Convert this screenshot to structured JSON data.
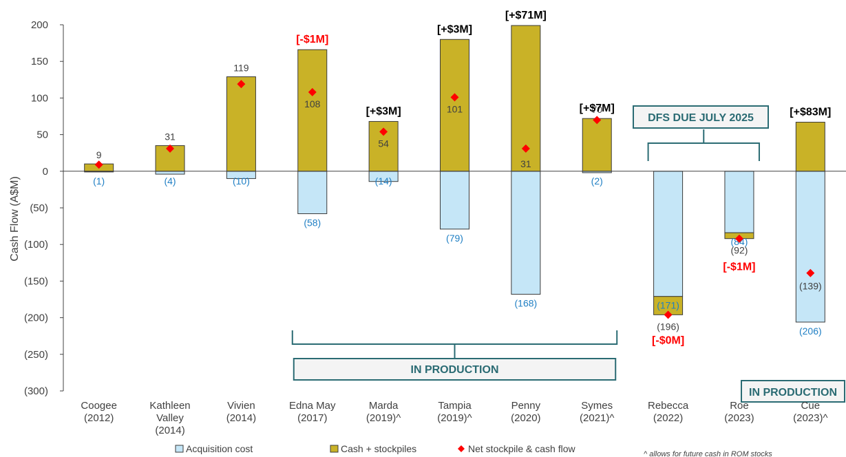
{
  "chart_data": {
    "type": "bar",
    "ylabel": "Cash Flow (A$M)",
    "ylim": [
      -300,
      200
    ],
    "yticks": [
      200,
      150,
      100,
      50,
      0,
      -50,
      -100,
      -150,
      -200,
      -250,
      -300
    ],
    "ytick_labels": [
      "200",
      "150",
      "100",
      "50",
      "0",
      "(50)",
      "(100)",
      "(150)",
      "(200)",
      "(250)",
      "(300)"
    ],
    "categories": [
      [
        "Coogee",
        "(2012)"
      ],
      [
        "Kathleen",
        "Valley",
        "(2014)"
      ],
      [
        "Vivien",
        "(2014)"
      ],
      [
        "Edna May",
        "(2017)"
      ],
      [
        "Marda",
        "(2019)^"
      ],
      [
        "Tampia",
        "(2019)^"
      ],
      [
        "Penny",
        "(2020)"
      ],
      [
        "Symes",
        "(2021)^"
      ],
      [
        "Rebecca",
        "(2022)"
      ],
      [
        "Roe",
        "(2023)"
      ],
      [
        "Cue",
        "(2023)^"
      ]
    ],
    "series": [
      {
        "name": "Acquisition cost",
        "color": "#c5e6f7",
        "values": [
          -1,
          -4,
          -10,
          -58,
          -14,
          -79,
          -168,
          -2,
          -171,
          -84,
          -206
        ],
        "labels": [
          "(1)",
          "(4)",
          "(10)",
          "(58)",
          "(14)",
          "(79)",
          "(168)",
          "(2)",
          "(171)",
          "(84)",
          "(206)"
        ]
      },
      {
        "name": "Cash + stockpiles",
        "color": "#c9b227",
        "values": [
          10,
          35,
          129,
          166,
          68,
          180,
          199,
          72,
          -25,
          -8,
          67
        ]
      },
      {
        "name": "Net stockpile & cash flow",
        "color": "#ff0000",
        "values": [
          9,
          31,
          119,
          108,
          54,
          101,
          31,
          70,
          -196,
          -92,
          -139
        ],
        "labels": [
          "9",
          "31",
          "119",
          "108",
          "54",
          "101",
          "31",
          "70",
          "(196)",
          "(92)",
          "(139)"
        ]
      }
    ],
    "annotations": [
      {
        "category": 3,
        "text": "[-$1M]",
        "color": "#ff0000"
      },
      {
        "category": 4,
        "text": "[+$3M]",
        "color": "#000000"
      },
      {
        "category": 5,
        "text": "[+$3M]",
        "color": "#000000"
      },
      {
        "category": 6,
        "text": "[+$71M]",
        "color": "#000000"
      },
      {
        "category": 7,
        "text": "[+$7M]",
        "color": "#000000"
      },
      {
        "category": 8,
        "text": "[-$0M]",
        "color": "#ff0000"
      },
      {
        "category": 9,
        "text": "[-$1M]",
        "color": "#ff0000"
      },
      {
        "category": 10,
        "text": "[+$83M]",
        "color": "#000000"
      }
    ],
    "group_boxes": [
      {
        "text": "IN PRODUCTION",
        "from_category": 3,
        "to_category": 7
      },
      {
        "text": "DFS DUE JULY 2025",
        "from_category": 8,
        "to_category": 9
      },
      {
        "text": "IN PRODUCTION",
        "from_category": 10,
        "to_category": 10
      }
    ],
    "legend": [
      "Acquisition cost",
      "Cash + stockpiles",
      "Net stockpile & cash flow"
    ],
    "legend_position": "bottom",
    "footnote": "^ allows for future cash in ROM stocks",
    "grid": false
  }
}
